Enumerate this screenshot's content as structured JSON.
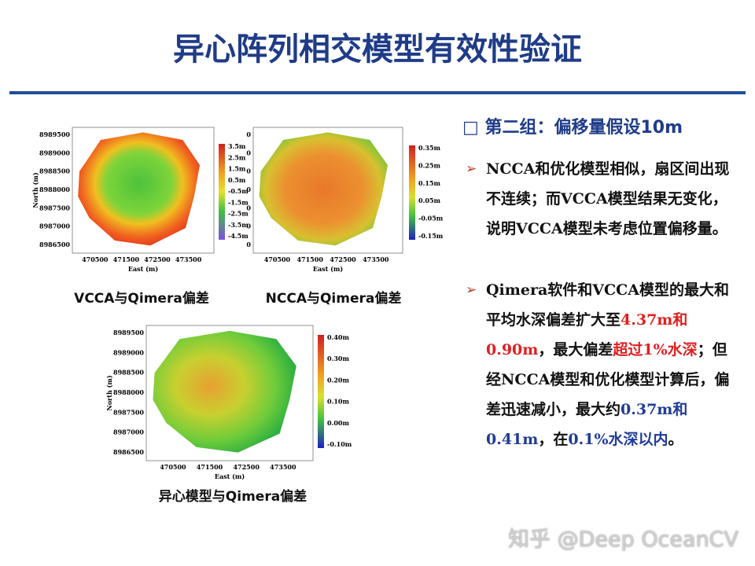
{
  "title": "异心阵列相交模型有效性验证",
  "heading": "第二组：偏移量假设10m",
  "bullets": [
    {
      "runs": [
        {
          "text": "NCCA和优化模型相似，扇区间出现不连续；而VCCA模型结果无变化，说明VCCA模型未考虑位置偏移量。",
          "color": "#111111"
        }
      ]
    },
    {
      "runs": [
        {
          "text": "Qimera软件和VCCA模型的最大和平均水深偏差扩大至",
          "color": "#111111"
        },
        {
          "text": "4.37m和0.90m",
          "color": "#e02020"
        },
        {
          "text": "，最大偏差",
          "color": "#111111"
        },
        {
          "text": "超过1%水深",
          "color": "#e02020"
        },
        {
          "text": "；但经NCCA模型和优化模型计算后，偏差迅速减小，最大约",
          "color": "#111111"
        },
        {
          "text": "0.37m和0.41m",
          "color": "#1f3c98"
        },
        {
          "text": "，在",
          "color": "#111111"
        },
        {
          "text": "0.1%水深以内",
          "color": "#1f3c98"
        },
        {
          "text": "。",
          "color": "#111111"
        }
      ]
    }
  ],
  "panels": [
    {
      "caption": "VCCA与Qimera偏差",
      "xlabel": "East (m)",
      "ylabel": "North (m)",
      "yticks": [
        "8989500",
        "8989000",
        "8988500",
        "8988000",
        "8987500",
        "8987000",
        "8986500"
      ],
      "xticks": [
        "470500",
        "471500",
        "472500",
        "473500"
      ],
      "colorbar": [
        "3.5m",
        "2.5m",
        "1.5m",
        "0.5m",
        "-0.5m",
        "-1.5m",
        "-2.5m",
        "-3.5m",
        "-4.5m"
      ]
    },
    {
      "caption": "NCCA与Qimera偏差",
      "xlabel": "East (m)",
      "yticks": [
        "0",
        "0",
        "0",
        "0",
        "0",
        "0",
        "0"
      ],
      "xticks": [
        "470500",
        "471500",
        "472500",
        "473500"
      ],
      "colorbar": [
        "0.35m",
        "0.25m",
        "0.15m",
        "0.05m",
        "-0.05m",
        "-0.15m"
      ]
    },
    {
      "caption": "异心模型与Qimera偏差",
      "xlabel": "East (m)",
      "ylabel": "North (m)",
      "yticks": [
        "8989500",
        "8989000",
        "8988500",
        "8988000",
        "8987500",
        "8987000",
        "8986500"
      ],
      "xticks": [
        "470500",
        "471500",
        "472500",
        "473500"
      ],
      "colorbar": [
        "0.40m",
        "0.30m",
        "0.20m",
        "0.10m",
        "0.00m",
        "-0.10m"
      ]
    }
  ],
  "watermark": "知乎 @Deep OceanCV"
}
